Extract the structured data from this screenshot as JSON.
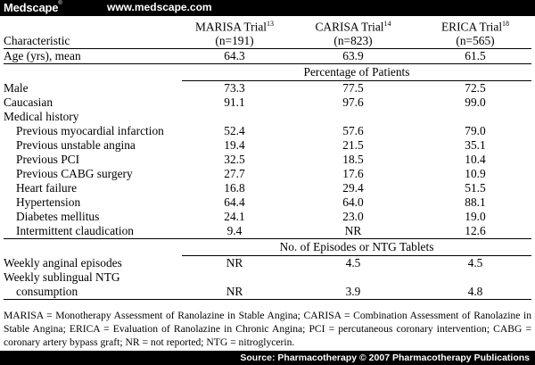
{
  "header": {
    "brand": "Medscape",
    "brand_mark": "®",
    "site": "www.medscape.com"
  },
  "table": {
    "col_header": "Characteristic",
    "trials": [
      {
        "name": "MARISA Trial",
        "ref": "13",
        "n": "(n=191)"
      },
      {
        "name": "CARISA Trial",
        "ref": "14",
        "n": "(n=823)"
      },
      {
        "name": "ERICA Trial",
        "ref": "18",
        "n": "(n=565)"
      }
    ],
    "age_row": {
      "label": "Age (yrs), mean",
      "values": [
        "64.3",
        "63.9",
        "61.5"
      ]
    },
    "section_pct": "Percentage of Patients",
    "male": {
      "label": "Male",
      "values": [
        "73.3",
        "77.5",
        "72.5"
      ]
    },
    "caucasian": {
      "label": "Caucasian",
      "values": [
        "91.1",
        "97.6",
        "99.0"
      ]
    },
    "medical_history_label": "Medical history",
    "history": [
      {
        "label": "Previous myocardial infarction",
        "values": [
          "52.4",
          "57.6",
          "79.0"
        ]
      },
      {
        "label": "Previous unstable angina",
        "values": [
          "19.4",
          "21.5",
          "35.1"
        ]
      },
      {
        "label": "Previous PCI",
        "values": [
          "32.5",
          "18.5",
          "10.4"
        ]
      },
      {
        "label": "Previous CABG surgery",
        "values": [
          "27.7",
          "17.6",
          "10.9"
        ]
      },
      {
        "label": "Heart failure",
        "values": [
          "16.8",
          "29.4",
          "51.5"
        ]
      },
      {
        "label": "Hypertension",
        "values": [
          "64.4",
          "64.0",
          "88.1"
        ]
      },
      {
        "label": "Diabetes mellitus",
        "values": [
          "24.1",
          "23.0",
          "19.0"
        ]
      },
      {
        "label": "Intermittent claudication",
        "values": [
          "9.4",
          "NR",
          "12.6"
        ]
      }
    ],
    "section_episodes": "No. of Episodes or NTG Tablets",
    "weekly_episodes": {
      "label": "Weekly anginal episodes",
      "values": [
        "NR",
        "4.5",
        "4.5"
      ]
    },
    "weekly_ntg": {
      "label_line1": "Weekly sublingual NTG",
      "label_line2": "consumption",
      "values": [
        "NR",
        "3.9",
        "4.8"
      ]
    }
  },
  "footnote": "MARISA = Monotherapy Assessment of Ranolazine in Stable Angina; CARISA = Combination Assessment of Ranolazine in Stable Angina; ERICA = Evaluation of Ranolazine in Chronic Angina; PCI = percutaneous coronary intervention; CABG = coronary artery bypass graft; NR = not reported; NTG = nitroglycerin.",
  "source": "Source: Pharmacotherapy © 2007 Pharmacotherapy Publications"
}
